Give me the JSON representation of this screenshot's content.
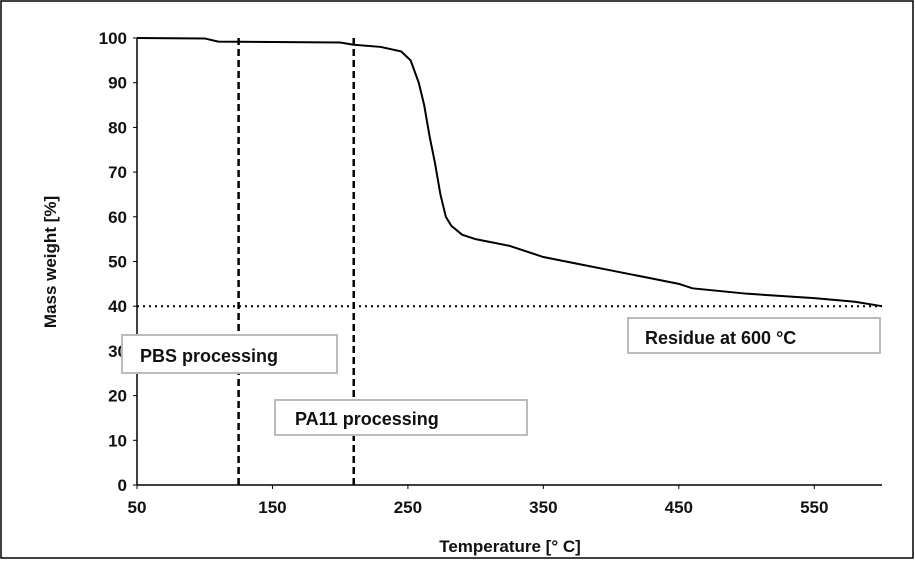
{
  "chart_data": {
    "type": "line",
    "x_label": "Temperature [° C]",
    "y_label": "Mass weight [%]",
    "xlim": [
      50,
      600
    ],
    "xticks": [
      50,
      150,
      250,
      350,
      450,
      550
    ],
    "ylim": [
      0,
      100
    ],
    "yticks": [
      0,
      10,
      20,
      30,
      40,
      50,
      60,
      70,
      80,
      90,
      100
    ],
    "grid": false,
    "color": "#000000",
    "x": [
      50,
      100,
      110,
      150,
      200,
      210,
      230,
      245,
      252,
      258,
      262,
      266,
      270,
      274,
      278,
      282,
      290,
      300,
      325,
      350,
      375,
      400,
      425,
      450,
      460,
      500,
      550,
      580,
      600
    ],
    "values": [
      100,
      99.9,
      99.2,
      99.1,
      99,
      98.5,
      98,
      97,
      95,
      90,
      85,
      78,
      72,
      65,
      60,
      58,
      56,
      55,
      53.5,
      51,
      49.5,
      48,
      46.5,
      45,
      44,
      42.8,
      41.8,
      41,
      40
    ],
    "vertical_lines": [
      125,
      210
    ],
    "horizontal_line": 40,
    "annotations": [
      "PBS processing",
      "PA11 processing",
      "Residue at 600 °C"
    ]
  }
}
